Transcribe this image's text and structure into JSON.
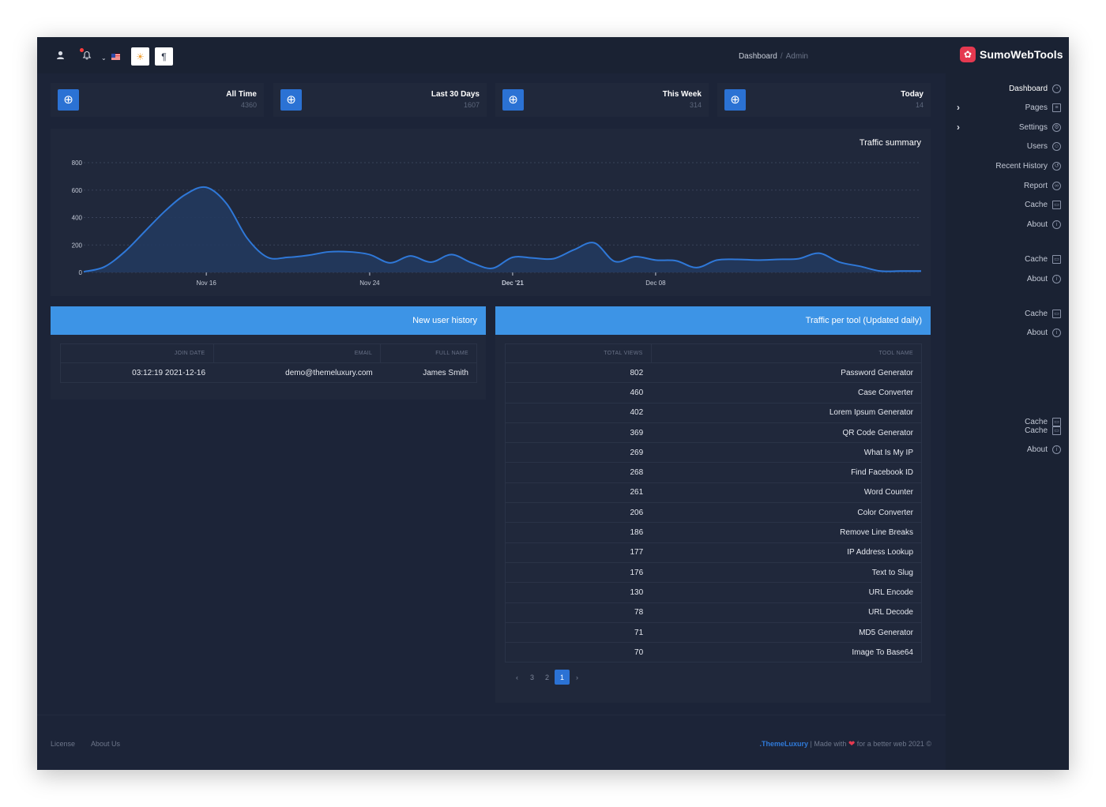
{
  "header": {
    "breadcrumb": [
      "Dashboard",
      "Admin"
    ],
    "breadcrumb_sep": "/",
    "theme_icon": "sun-icon",
    "rtl_icon": "pilcrow-icon"
  },
  "brand": {
    "name": "SumoWebTools",
    "color": "#e53950"
  },
  "sidebar": {
    "items": [
      {
        "label": "Dashboard",
        "icon": "dashboard-icon"
      },
      {
        "label": "Pages",
        "icon": "file-icon"
      },
      {
        "label": "Settings",
        "icon": "gear-icon"
      },
      {
        "label": "Users",
        "icon": "users-icon"
      },
      {
        "label": "Recent History",
        "icon": "history-icon"
      },
      {
        "label": "Report",
        "icon": "link-icon"
      },
      {
        "label": "Cache",
        "icon": "archive-icon"
      },
      {
        "label": "About",
        "icon": "info-icon"
      },
      {
        "label": "Cache",
        "icon": "archive-icon"
      },
      {
        "label": "About",
        "icon": "info-icon"
      },
      {
        "label": "Cache",
        "icon": "archive-icon"
      },
      {
        "label": "About",
        "icon": "info-icon"
      },
      {
        "label": "Cache",
        "icon": "archive-icon"
      },
      {
        "label": "Cache",
        "icon": "archive-icon"
      },
      {
        "label": "About",
        "icon": "info-icon"
      }
    ]
  },
  "stats": [
    {
      "label": "All Time",
      "value": "4360"
    },
    {
      "label": "Last 30 Days",
      "value": "1607"
    },
    {
      "label": "This Week",
      "value": "314"
    },
    {
      "label": "Today",
      "value": "14"
    }
  ],
  "chart_data": {
    "type": "area",
    "title": "Traffic summary",
    "xlabel": "",
    "ylabel": "",
    "ylim": [
      0,
      800
    ],
    "yticks": [
      "800",
      "600",
      "400",
      "200",
      "0"
    ],
    "xticks": [
      "Nov 16",
      "Nov 24",
      "Dec '21",
      "Dec 08"
    ],
    "grid": true,
    "color": "#2f78d8",
    "x": [
      "Nov 10",
      "Nov 11",
      "Nov 12",
      "Nov 13",
      "Nov 14",
      "Nov 15",
      "Nov 16",
      "Nov 17",
      "Nov 18",
      "Nov 19",
      "Nov 20",
      "Nov 21",
      "Nov 22",
      "Nov 23",
      "Nov 24",
      "Nov 25",
      "Nov 26",
      "Nov 27",
      "Nov 28",
      "Nov 29",
      "Nov 30",
      "Dec 01",
      "Dec 02",
      "Dec 03",
      "Dec 04",
      "Dec 05",
      "Dec 06",
      "Dec 07",
      "Dec 08",
      "Dec 09",
      "Dec 10",
      "Dec 11",
      "Dec 12",
      "Dec 13",
      "Dec 14",
      "Dec 15",
      "Dec 16",
      "Dec 17",
      "Dec 18",
      "Dec 19",
      "Dec 20",
      "Dec 21"
    ],
    "values": [
      5,
      40,
      150,
      300,
      450,
      570,
      620,
      500,
      250,
      110,
      110,
      125,
      150,
      150,
      130,
      70,
      120,
      75,
      130,
      70,
      30,
      110,
      105,
      100,
      165,
      215,
      80,
      115,
      90,
      85,
      35,
      90,
      95,
      90,
      95,
      100,
      140,
      75,
      45,
      10,
      10,
      10
    ]
  },
  "user_history": {
    "title": "New user history",
    "columns": [
      "JOIN DATE",
      "EMAIL",
      "FULL NAME"
    ],
    "rows": [
      [
        "03:12:19 2021-12-16",
        "demo@themeluxury.com",
        "James Smith"
      ]
    ]
  },
  "tool_traffic": {
    "title": "Traffic per tool (Updated daily)",
    "columns": [
      "TOTAL VIEWS",
      "TOOL NAME"
    ],
    "rows": [
      [
        "802",
        "Password Generator"
      ],
      [
        "460",
        "Case Converter"
      ],
      [
        "402",
        "Lorem Ipsum Generator"
      ],
      [
        "369",
        "QR Code Generator"
      ],
      [
        "269",
        "What Is My IP"
      ],
      [
        "268",
        "Find Facebook ID"
      ],
      [
        "261",
        "Word Counter"
      ],
      [
        "206",
        "Color Converter"
      ],
      [
        "186",
        "Remove Line Breaks"
      ],
      [
        "177",
        "IP Address Lookup"
      ],
      [
        "176",
        "Text to Slug"
      ],
      [
        "130",
        "URL Encode"
      ],
      [
        "78",
        "URL Decode"
      ],
      [
        "71",
        "MD5 Generator"
      ],
      [
        "70",
        "Image To Base64"
      ]
    ],
    "pagination": {
      "prev": "‹",
      "pages": [
        "3",
        "2",
        "1"
      ],
      "current": "1",
      "next": "›"
    }
  },
  "footer": {
    "links": [
      "License",
      "About Us"
    ],
    "brand": ".ThemeLuxury",
    "made_with": "| Made with",
    "heart": "❤",
    "tail": "for a better web 2021 ©"
  }
}
